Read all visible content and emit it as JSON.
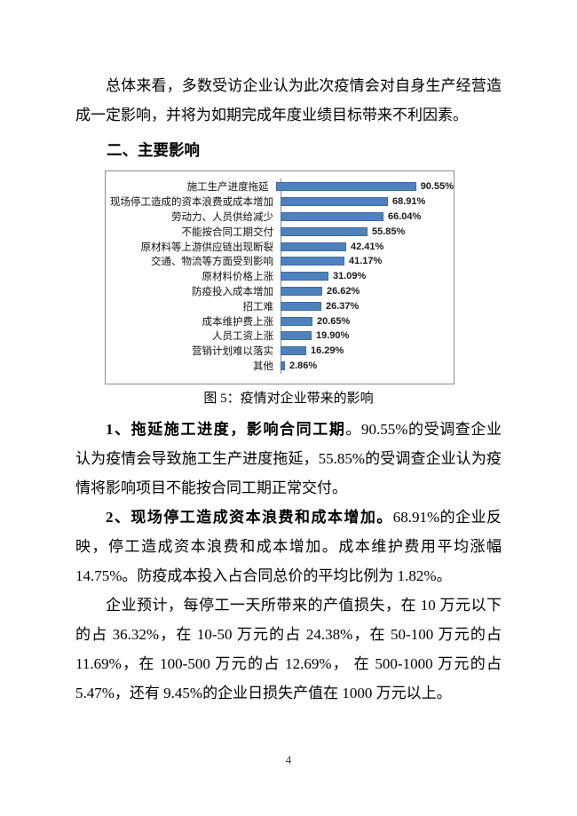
{
  "document": {
    "intro": "总体来看，多数受访企业认为此次疫情会对自身生产经营造成一定影响，并将为如期完成年度业绩目标带来不利因素。",
    "heading": "二、主要影响",
    "figure_caption": "图 5：疫情对企业带来的影响",
    "page_number": "4",
    "paragraphs": [
      {
        "lead": "1、拖延施工进度，影响合同工期",
        "body": "。90.55%的受调查企业认为疫情会导致施工生产进度拖延，55.85%的受调查企业认为疫情将影响项目不能按合同工期正常交付。"
      },
      {
        "lead": "2、现场停工造成资本浪费和成本增加。",
        "body": "68.91%的企业反映，停工造成资本浪费和成本增加。成本维护费用平均涨幅 14.75%。防疫成本投入占合同总价的平均比例为 1.82%。"
      },
      {
        "lead": "",
        "body": "企业预计，每停工一天所带来的产值损失，在 10 万元以下的占 36.32%，在 10-50 万元的占 24.38%，在 50-100 万元的占 11.69%，在 100-500 万元的占 12.69%， 在 500-1000 万元的占 5.47%，还有 9.45%的企业日损失产值在 1000 万元以上。"
      }
    ]
  },
  "chart_data": {
    "type": "bar",
    "orientation": "horizontal",
    "title": "",
    "categories": [
      "施工生产进度拖延",
      "现场停工造成的资本浪费或成本增加",
      "劳动力、人员供给减少",
      "不能按合同工期交付",
      "原材料等上游供应链出现断裂",
      "交通、物流等方面受到影响",
      "原材料价格上涨",
      "防疫投入成本增加",
      "招工难",
      "成本维护费上涨",
      "人员工资上涨",
      "营销计划难以落实",
      "其他"
    ],
    "values": [
      90.55,
      68.91,
      66.04,
      55.85,
      42.41,
      41.17,
      31.09,
      26.62,
      26.37,
      20.65,
      19.9,
      16.29,
      2.86
    ],
    "value_labels": [
      "90.55%",
      "68.91%",
      "66.04%",
      "55.85%",
      "42.41%",
      "41.17%",
      "31.09%",
      "26.62%",
      "26.37%",
      "20.65%",
      "19.90%",
      "16.29%",
      "2.86%"
    ],
    "xlim": [
      0,
      100
    ],
    "bar_color": "#4F81BD",
    "bar_border_color": "#3D6BA6",
    "grid": false,
    "legend": false
  }
}
